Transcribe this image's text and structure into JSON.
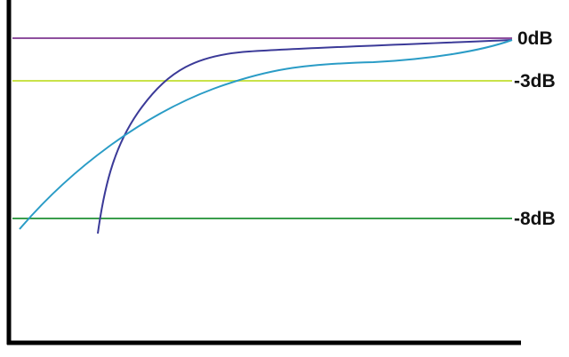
{
  "reference_lines": [
    {
      "label": "0dB",
      "color": "#8e4f9e"
    },
    {
      "label": "-3dB",
      "color": "#c9e24a"
    },
    {
      "label": "-8dB",
      "color": "#3a9e4c"
    }
  ],
  "curves": [
    {
      "color": "#3b3a98"
    },
    {
      "color": "#2a9cc6"
    }
  ],
  "axis_color": "#000000"
}
